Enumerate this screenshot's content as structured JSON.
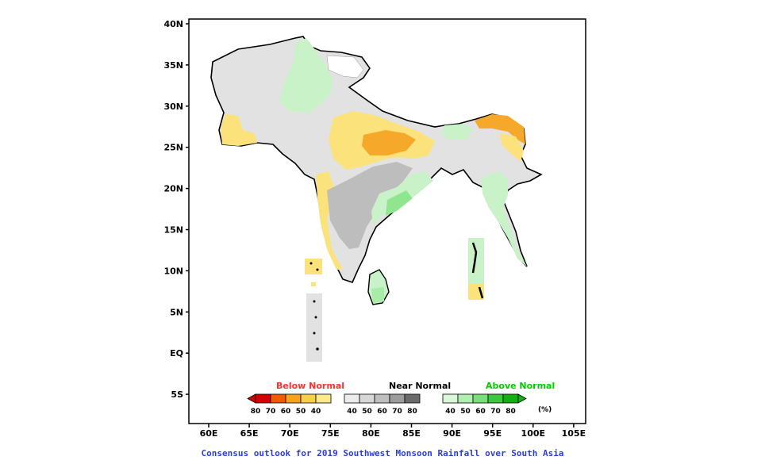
{
  "map": {
    "lat_labels": [
      "40N",
      "35N",
      "30N",
      "25N",
      "20N",
      "15N",
      "10N",
      "5N",
      "EQ",
      "5S"
    ],
    "lon_labels": [
      "60E",
      "65E",
      "70E",
      "75E",
      "80E",
      "85E",
      "90E",
      "95E",
      "100E",
      "105E"
    ],
    "lat_range": [
      -8,
      40
    ],
    "lon_range": [
      57,
      106
    ]
  },
  "legend": {
    "below": {
      "title": "Below Normal",
      "color": "#ff3030",
      "labels": [
        "80",
        "70",
        "60",
        "50",
        "40"
      ],
      "colors": [
        "#d40000",
        "#f05a00",
        "#f7a21c",
        "#f7cf4a",
        "#fbe98a"
      ]
    },
    "near": {
      "title": "Near Normal",
      "color": "#000000",
      "labels": [
        "40",
        "50",
        "60",
        "70",
        "80"
      ],
      "colors": [
        "#ececec",
        "#d7d7d7",
        "#bfbfbf",
        "#9c9c9c",
        "#6a6a6a"
      ]
    },
    "above": {
      "title": "Above Normal",
      "color": "#00cc00",
      "labels": [
        "40",
        "50",
        "60",
        "70",
        "80"
      ],
      "colors": [
        "#d9f7d9",
        "#aef0ae",
        "#78e078",
        "#3cc83c",
        "#10b010"
      ]
    },
    "unit": "(%)"
  },
  "caption": "Consensus outlook for 2019 Southwest Monsoon Rainfall over South Asia"
}
